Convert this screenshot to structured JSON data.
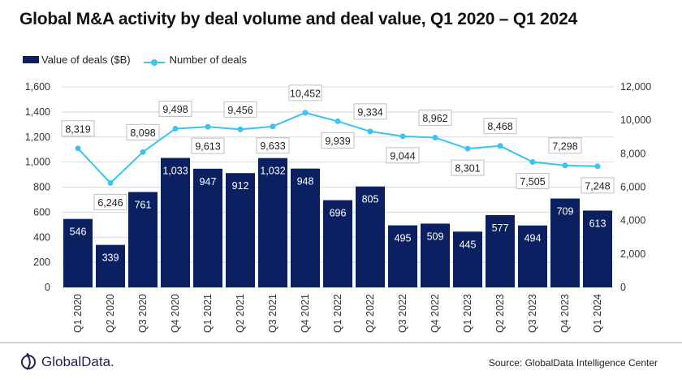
{
  "chart_data": {
    "type": "bar+line",
    "title": "Global M&A activity by deal volume and deal value, Q1 2020 – Q1 2024",
    "categories": [
      "Q1 2020",
      "Q2 2020",
      "Q3 2020",
      "Q4 2020",
      "Q1 2021",
      "Q2 2021",
      "Q3 2021",
      "Q4 2021",
      "Q1 2022",
      "Q2 2022",
      "Q3 2022",
      "Q4 2022",
      "Q1 2023",
      "Q2 2023",
      "Q3 2023",
      "Q4 2023",
      "Q1 2024"
    ],
    "series": [
      {
        "name": "Value of deals ($B)",
        "type": "bar",
        "axis": "left",
        "color": "#0b2060",
        "values": [
          546,
          339,
          761,
          1033,
          947,
          912,
          1032,
          948,
          696,
          805,
          495,
          509,
          445,
          577,
          494,
          709,
          613
        ]
      },
      {
        "name": "Number of deals",
        "type": "line",
        "axis": "right",
        "color": "#3cc3f3",
        "values": [
          8319,
          6246,
          8098,
          9498,
          9613,
          9456,
          9633,
          10452,
          9939,
          9334,
          9044,
          8962,
          8301,
          8468,
          7505,
          7298,
          7248
        ]
      }
    ],
    "y_left": {
      "range": [
        0,
        1600
      ],
      "ticks": [
        0,
        200,
        400,
        600,
        800,
        1000,
        1200,
        1400,
        1600
      ]
    },
    "y_right": {
      "range": [
        0,
        12000
      ],
      "ticks": [
        0,
        2000,
        4000,
        6000,
        8000,
        10000,
        12000
      ]
    },
    "grid": true,
    "legend": "top-left"
  },
  "footer": {
    "logo": "GlobalData.",
    "source": "Source: GlobalData Intelligence Center"
  }
}
